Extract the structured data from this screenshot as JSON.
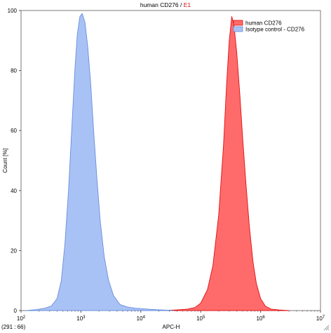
{
  "chart_data": {
    "type": "area",
    "title_main": "human CD276",
    "title_separator": " / ",
    "title_gate": "E1",
    "xlabel": "APC-H",
    "ylabel": "Count [%]",
    "x_scale": "log",
    "xlim": [
      100,
      10000000
    ],
    "ylim": [
      0,
      100
    ],
    "x_ticks": [
      {
        "base": "10",
        "exp": "2"
      },
      {
        "base": "10",
        "exp": "3"
      },
      {
        "base": "10",
        "exp": "4"
      },
      {
        "base": "10",
        "exp": "5"
      },
      {
        "base": "10",
        "exp": "6"
      },
      {
        "base": "10",
        "exp": "7"
      }
    ],
    "y_ticks": [
      "0",
      "20",
      "40",
      "60",
      "80",
      "100"
    ],
    "grid": false,
    "legend_position": "top-right",
    "series": [
      {
        "name": "human CD276",
        "color": "#ff6b6b",
        "stroke": "#e01010",
        "points": [
          [
            20000,
            0
          ],
          [
            40000,
            0.2
          ],
          [
            60000,
            0.5
          ],
          [
            80000,
            1
          ],
          [
            100000,
            2.5
          ],
          [
            130000,
            7
          ],
          [
            160000,
            15
          ],
          [
            200000,
            32
          ],
          [
            240000,
            55
          ],
          [
            270000,
            75
          ],
          [
            300000,
            90
          ],
          [
            330000,
            98
          ],
          [
            360000,
            95
          ],
          [
            400000,
            86
          ],
          [
            450000,
            72
          ],
          [
            500000,
            58
          ],
          [
            570000,
            42
          ],
          [
            650000,
            28
          ],
          [
            750000,
            16
          ],
          [
            850000,
            9
          ],
          [
            1000000,
            4
          ],
          [
            1200000,
            1.5
          ],
          [
            1500000,
            0.5
          ],
          [
            2000000,
            0.2
          ],
          [
            3000000,
            0
          ]
        ]
      },
      {
        "name": "Isotype control - CD276",
        "color": "#a9c2f5",
        "stroke": "#6a8edc",
        "points": [
          [
            120,
            0
          ],
          [
            180,
            0.3
          ],
          [
            250,
            0.8
          ],
          [
            320,
            1.5
          ],
          [
            400,
            4
          ],
          [
            470,
            10
          ],
          [
            540,
            22
          ],
          [
            620,
            40
          ],
          [
            700,
            60
          ],
          [
            790,
            80
          ],
          [
            870,
            92
          ],
          [
            960,
            98
          ],
          [
            1050,
            99
          ],
          [
            1170,
            96
          ],
          [
            1300,
            88
          ],
          [
            1450,
            76
          ],
          [
            1630,
            60
          ],
          [
            1850,
            44
          ],
          [
            2100,
            30
          ],
          [
            2450,
            18
          ],
          [
            2900,
            10
          ],
          [
            3500,
            5
          ],
          [
            4500,
            2
          ],
          [
            6000,
            1.2
          ],
          [
            8000,
            0.8
          ],
          [
            11000,
            0.6
          ],
          [
            15000,
            0.4
          ],
          [
            22000,
            0.2
          ],
          [
            35000,
            0
          ]
        ]
      }
    ]
  },
  "status": {
    "coords": "(291 : 66)"
  }
}
